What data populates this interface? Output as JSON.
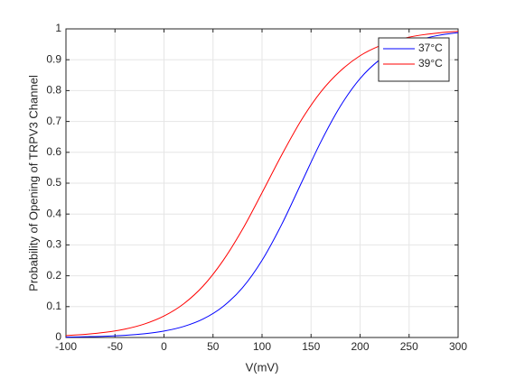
{
  "chart_data": {
    "type": "line",
    "xlabel": "V(mV)",
    "ylabel": "Probability of Opening of TRPV3 Channel",
    "x": [
      -100,
      -80,
      -60,
      -40,
      -20,
      0,
      20,
      40,
      60,
      80,
      100,
      120,
      140,
      160,
      180,
      200,
      220,
      240,
      260,
      280,
      300
    ],
    "series": [
      {
        "name": "37°C",
        "color": "#0000ff",
        "values": [
          0.001,
          0.0024,
          0.0041,
          0.0071,
          0.0122,
          0.0209,
          0.0357,
          0.0602,
          0.0999,
          0.161,
          0.25,
          0.366,
          0.5,
          0.634,
          0.75,
          0.839,
          0.9,
          0.94,
          0.964,
          0.979,
          0.988
        ]
      },
      {
        "name": "39°C",
        "color": "#ff0000",
        "values": [
          0.0063,
          0.0103,
          0.0167,
          0.0271,
          0.0437,
          0.0696,
          0.109,
          0.167,
          0.248,
          0.35,
          0.469,
          0.591,
          0.704,
          0.796,
          0.864,
          0.913,
          0.945,
          0.966,
          0.979,
          0.987,
          0.992
        ]
      }
    ],
    "xlim": [
      -100,
      300
    ],
    "xticks": [
      -100,
      -50,
      0,
      50,
      100,
      150,
      200,
      250,
      300
    ],
    "ylim": [
      0,
      1
    ],
    "yticks": [
      0,
      0.1,
      0.2,
      0.3,
      0.4,
      0.5,
      0.6,
      0.7,
      0.8,
      0.9,
      1
    ],
    "grid": true,
    "legend": "northeast"
  }
}
